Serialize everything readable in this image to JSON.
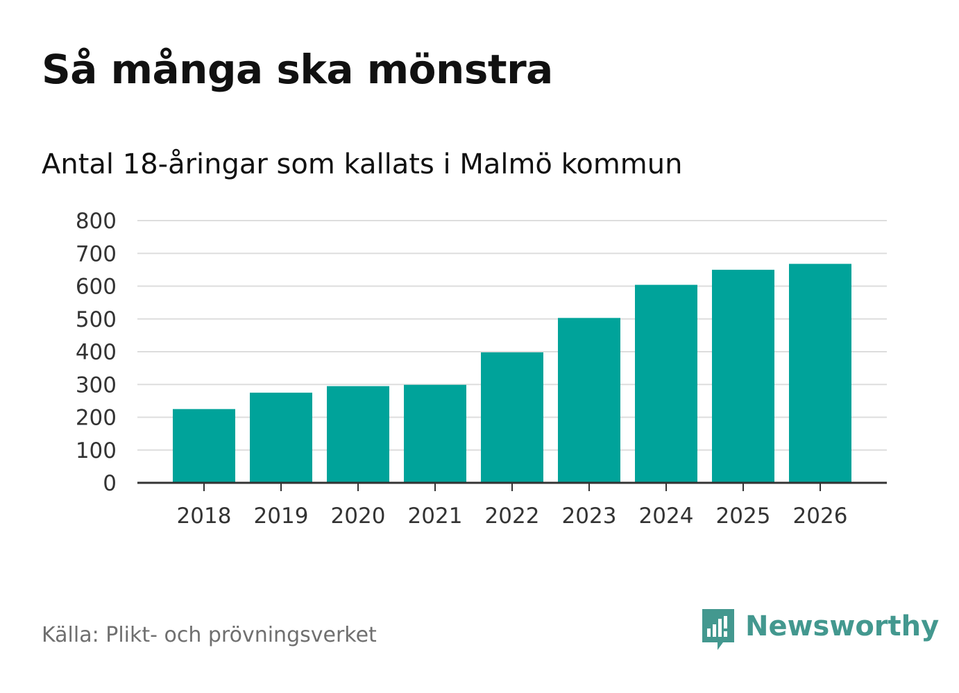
{
  "title": "Så många ska mönstra",
  "subtitle": "Antal 18-åringar som kallats i Malmö kommun",
  "source": "Källa: Plikt- och prövningsverket",
  "brand": {
    "name": "Newsworthy",
    "icon": "newsworthy-bar-chart-bubble-icon",
    "color": "#43988f"
  },
  "colors": {
    "bar": "#00a39a",
    "grid": "#dddddd",
    "axis": "#333333",
    "text": "#111111",
    "muted": "#6f6f6f"
  },
  "chart_data": {
    "type": "bar",
    "title": "Så många ska mönstra",
    "subtitle": "Antal 18-åringar som kallats i Malmö kommun",
    "xlabel": "",
    "ylabel": "",
    "categories": [
      "2018",
      "2019",
      "2020",
      "2021",
      "2022",
      "2023",
      "2024",
      "2025",
      "2026"
    ],
    "values": [
      225,
      275,
      295,
      299,
      398,
      503,
      604,
      650,
      668
    ],
    "ylim": [
      0,
      800
    ],
    "yticks": [
      0,
      100,
      200,
      300,
      400,
      500,
      600,
      700,
      800
    ],
    "grid": true,
    "legend": "none"
  }
}
